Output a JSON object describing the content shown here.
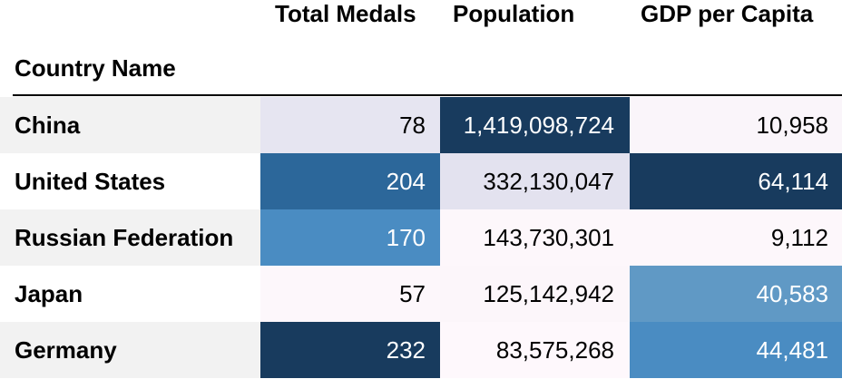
{
  "chart_data": {
    "type": "table",
    "index_label": "Country Name",
    "columns": [
      "Total Medals",
      "Population",
      "GDP per Capita"
    ],
    "rows": [
      {
        "name": "China",
        "name_bg": "#f2f2f2",
        "cells": [
          {
            "value": "78",
            "bg": "#e6e5f1",
            "color": "#000000"
          },
          {
            "value": "1,419,098,724",
            "bg": "#183b5e",
            "color": "#ffffff"
          },
          {
            "value": "10,958",
            "bg": "#faf5fa",
            "color": "#000000"
          }
        ]
      },
      {
        "name": "United States",
        "name_bg": "#ffffff",
        "cells": [
          {
            "value": "204",
            "bg": "#2c679a",
            "color": "#ffffff"
          },
          {
            "value": "332,130,047",
            "bg": "#e3e2ef",
            "color": "#000000"
          },
          {
            "value": "64,114",
            "bg": "#183b5e",
            "color": "#ffffff"
          }
        ]
      },
      {
        "name": "Russian Federation",
        "name_bg": "#f2f2f2",
        "cells": [
          {
            "value": "170",
            "bg": "#4a8cc2",
            "color": "#ffffff"
          },
          {
            "value": "143,730,301",
            "bg": "#fdf7fb",
            "color": "#000000"
          },
          {
            "value": "9,112",
            "bg": "#fdf7fb",
            "color": "#000000"
          }
        ]
      },
      {
        "name": "Japan",
        "name_bg": "#ffffff",
        "cells": [
          {
            "value": "57",
            "bg": "#fdf7fb",
            "color": "#000000"
          },
          {
            "value": "125,142,942",
            "bg": "#fcf6fa",
            "color": "#000000"
          },
          {
            "value": "40,583",
            "bg": "#6099c5",
            "color": "#ffffff"
          }
        ]
      },
      {
        "name": "Germany",
        "name_bg": "#f2f2f2",
        "cells": [
          {
            "value": "232",
            "bg": "#183b5e",
            "color": "#ffffff"
          },
          {
            "value": "83,575,268",
            "bg": "#fef8fc",
            "color": "#000000"
          },
          {
            "value": "44,481",
            "bg": "#4a8cc2",
            "color": "#ffffff"
          }
        ]
      }
    ]
  }
}
